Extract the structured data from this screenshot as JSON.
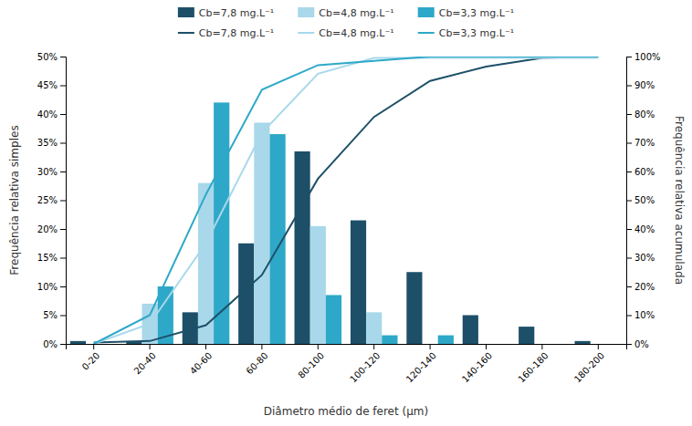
{
  "chart_data": {
    "type": "bar",
    "x_label": "Diâmetro médio de feret (μm)",
    "y_label": "Frequência relativa simples",
    "y2_label": "Frequência relativa acumulada",
    "categories": [
      "0-20",
      "20-40",
      "40-60",
      "60-80",
      "80-100",
      "100-120",
      "120-140",
      "140-160",
      "160-180",
      "180-200"
    ],
    "series": [
      {
        "name": "Cb=7,8 mg.L⁻¹",
        "type": "bar",
        "color": "#1d5068",
        "values": [
          0.5,
          0.5,
          5.5,
          17.5,
          33.5,
          21.5,
          12.5,
          5.0,
          3.0,
          0.5
        ]
      },
      {
        "name": "Cb=4,8 mg.L⁻¹",
        "type": "bar",
        "color": "#a8d8ea",
        "values": [
          0.0,
          7.0,
          28.0,
          38.5,
          20.5,
          5.5,
          0.0,
          0.0,
          0.0,
          0.0
        ]
      },
      {
        "name": "Cb=3,3 mg.L⁻¹",
        "type": "bar",
        "color": "#2ea8c8",
        "values": [
          0.0,
          10.0,
          42.0,
          36.5,
          8.5,
          1.5,
          1.5,
          0.0,
          0.0,
          0.0
        ]
      },
      {
        "name": "Cb=7,8 mg.L⁻¹",
        "type": "line",
        "axis": "y2",
        "color": "#1d5068",
        "values": [
          0.5,
          1.0,
          6.5,
          24.0,
          57.5,
          79.0,
          91.5,
          96.5,
          99.5,
          100.0
        ]
      },
      {
        "name": "Cb=4,8 mg.L⁻¹",
        "type": "line",
        "axis": "y2",
        "color": "#a8d8ea",
        "values": [
          0.0,
          7.0,
          35.0,
          73.5,
          94.0,
          99.5,
          99.5,
          99.5,
          99.5,
          99.5
        ]
      },
      {
        "name": "Cb=3,3 mg.L⁻¹",
        "type": "line",
        "axis": "y2",
        "color": "#2ea8c8",
        "values": [
          0.0,
          10.0,
          52.0,
          88.5,
          97.0,
          98.5,
          100.0,
          100.0,
          100.0,
          100.0
        ]
      }
    ],
    "ylim": [
      0,
      50
    ],
    "yticks": [
      {
        "value": 0,
        "label": "0%"
      },
      {
        "value": 5,
        "label": "5%"
      },
      {
        "value": 10,
        "label": "10%"
      },
      {
        "value": 15,
        "label": "15%"
      },
      {
        "value": 20,
        "label": "20%"
      },
      {
        "value": 25,
        "label": "25%"
      },
      {
        "value": 30,
        "label": "30%"
      },
      {
        "value": 35,
        "label": "35%"
      },
      {
        "value": 40,
        "label": "40%"
      },
      {
        "value": 45,
        "label": "45%"
      },
      {
        "value": 50,
        "label": "50%"
      }
    ],
    "y2lim": [
      0,
      100
    ],
    "y2ticks": [
      {
        "value": 0,
        "label": "0%"
      },
      {
        "value": 10,
        "label": "10%"
      },
      {
        "value": 20,
        "label": "20%"
      },
      {
        "value": 30,
        "label": "30%"
      },
      {
        "value": 40,
        "label": "40%"
      },
      {
        "value": 50,
        "label": "50%"
      },
      {
        "value": 60,
        "label": "60%"
      },
      {
        "value": 70,
        "label": "70%"
      },
      {
        "value": 80,
        "label": "80%"
      },
      {
        "value": 90,
        "label": "90%"
      },
      {
        "value": 100,
        "label": "100%"
      }
    ],
    "grid": false,
    "legend": "top"
  }
}
